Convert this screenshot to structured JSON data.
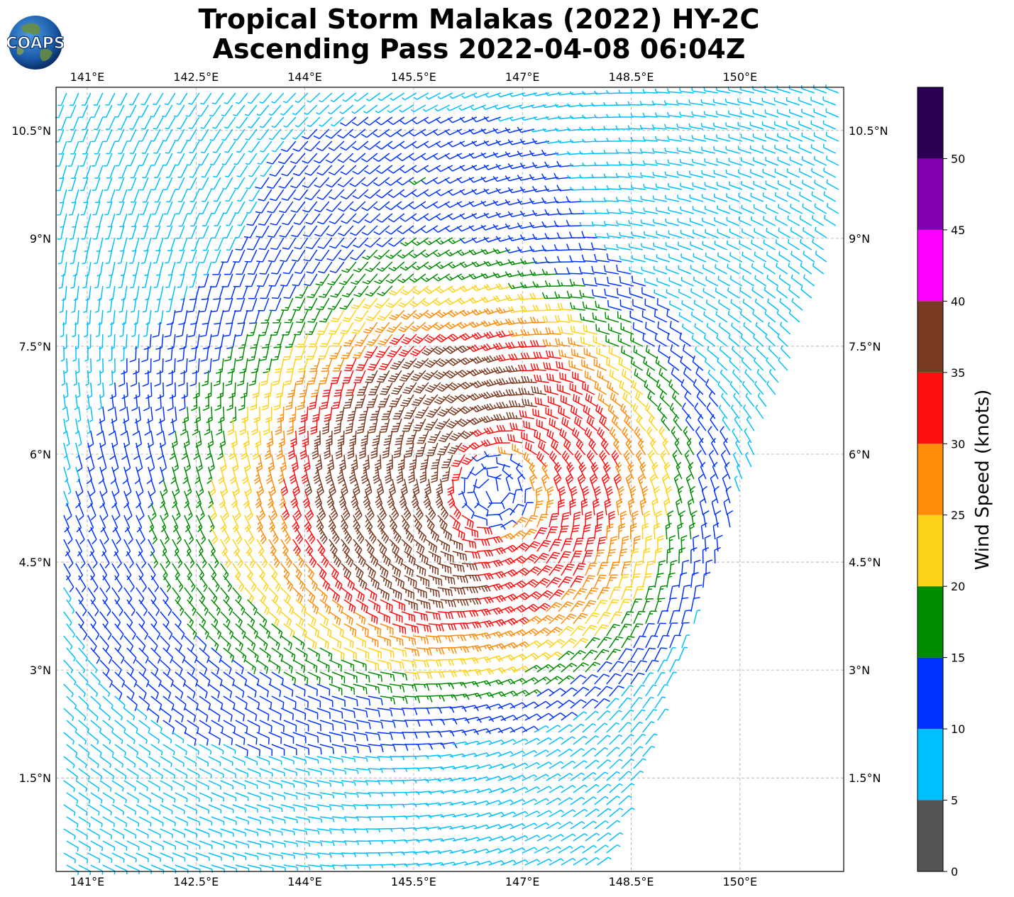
{
  "header": {
    "title_line1": "Tropical Storm Malakas (2022) HY-2C",
    "title_line2": "Ascending Pass 2022-04-08 06:04Z",
    "logo_text": "COAPS"
  },
  "map": {
    "lon_ticks": [
      "141°E",
      "142.5°E",
      "144°E",
      "145.5°E",
      "147°E",
      "148.5°E",
      "150°E"
    ],
    "lon_values": [
      141,
      142.5,
      144,
      145.5,
      147,
      148.5,
      150
    ],
    "lat_ticks": [
      "10.5°N",
      "9°N",
      "7.5°N",
      "6°N",
      "4.5°N",
      "3°N",
      "1.5°N"
    ],
    "lat_values": [
      10.5,
      9,
      7.5,
      6,
      4.5,
      3,
      1.5
    ],
    "extent": {
      "lon_min": 140.57,
      "lon_max": 151.43,
      "lat_min": 0.2,
      "lat_max": 11.1
    },
    "storm_center": {
      "lon": 146.6,
      "lat": 5.5
    },
    "grid": true
  },
  "colorbar": {
    "label": "Wind Speed (knots)",
    "ticks": [
      "0",
      "5",
      "10",
      "15",
      "20",
      "25",
      "30",
      "35",
      "40",
      "45",
      "50"
    ],
    "bins": [
      {
        "min": 0,
        "max": 5,
        "color": "#555555"
      },
      {
        "min": 5,
        "max": 10,
        "color": "#00bfff"
      },
      {
        "min": 10,
        "max": 15,
        "color": "#0033ff"
      },
      {
        "min": 15,
        "max": 20,
        "color": "#008c00"
      },
      {
        "min": 20,
        "max": 25,
        "color": "#ffd21a"
      },
      {
        "min": 25,
        "max": 30,
        "color": "#ff8c0a"
      },
      {
        "min": 30,
        "max": 35,
        "color": "#ff1010"
      },
      {
        "min": 35,
        "max": 40,
        "color": "#7b3a22"
      },
      {
        "min": 40,
        "max": 45,
        "color": "#ff00ff"
      },
      {
        "min": 45,
        "max": 50,
        "color": "#8000b0"
      },
      {
        "min": 50,
        "max": 55,
        "color": "#2a0055"
      }
    ]
  }
}
